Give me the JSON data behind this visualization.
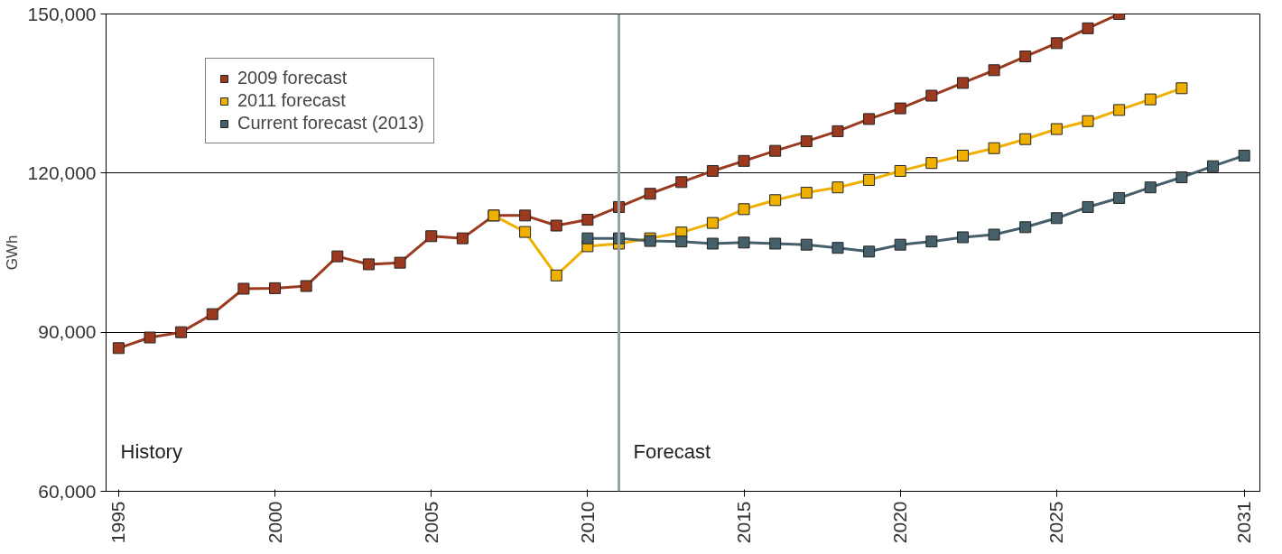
{
  "chart_data": {
    "type": "line",
    "ylabel": "GWh",
    "xlim": [
      1994.6,
      2031.5
    ],
    "xticks": [
      1995,
      2000,
      2005,
      2010,
      2015,
      2020,
      2025,
      2031
    ],
    "ylim": [
      60000,
      150000
    ],
    "yticks": [
      {
        "value": 60000,
        "label": "60,000"
      },
      {
        "value": 90000,
        "label": "90,000"
      },
      {
        "value": 120000,
        "label": "120,000"
      },
      {
        "value": 150000,
        "label": "150,000"
      }
    ],
    "grid": "y",
    "legend": "top left",
    "marker": "square",
    "line_style": "solid",
    "series": [
      {
        "name": "2009 forecast",
        "color": "#9b3a1e",
        "x": [
          1995,
          1996,
          1997,
          1998,
          1999,
          2000,
          2001,
          2002,
          2003,
          2004,
          2005,
          2006,
          2007,
          2008,
          2009,
          2010,
          2011,
          2012,
          2013,
          2014,
          2015,
          2016,
          2017,
          2018,
          2019,
          2020,
          2021,
          2022,
          2023,
          2024,
          2025,
          2026,
          2027
        ],
        "values": [
          87000,
          89000,
          90000,
          93400,
          98200,
          98300,
          98700,
          104300,
          102800,
          103100,
          108100,
          107700,
          112000,
          112000,
          110100,
          111200,
          113600,
          116100,
          118300,
          120400,
          122300,
          124200,
          126000,
          127900,
          130200,
          132200,
          134600,
          137000,
          139400,
          142000,
          144500,
          147300,
          150000
        ]
      },
      {
        "name": "2011 forecast",
        "color": "#f0b000",
        "x": [
          2007,
          2008,
          2009,
          2010,
          2011,
          2012,
          2013,
          2014,
          2015,
          2016,
          2017,
          2018,
          2019,
          2020,
          2021,
          2022,
          2023,
          2024,
          2025,
          2026,
          2027,
          2028,
          2029
        ],
        "values": [
          112000,
          108900,
          100700,
          106200,
          106700,
          107700,
          108800,
          110600,
          113200,
          114900,
          116300,
          117300,
          118700,
          120400,
          121900,
          123300,
          124700,
          126400,
          128300,
          129800,
          131900,
          133900,
          136000
        ]
      },
      {
        "name": "Current forecast (2013)",
        "color": "#46606b",
        "x": [
          2010,
          2011,
          2012,
          2013,
          2014,
          2015,
          2016,
          2017,
          2018,
          2019,
          2020,
          2021,
          2022,
          2023,
          2024,
          2025,
          2026,
          2027,
          2028,
          2029,
          2030,
          2031
        ],
        "values": [
          107700,
          107700,
          107200,
          107100,
          106700,
          106900,
          106700,
          106500,
          105900,
          105200,
          106500,
          107100,
          107900,
          108400,
          109800,
          111500,
          113600,
          115300,
          117300,
          119200,
          121300,
          123300
        ]
      }
    ],
    "ref_lines": [
      {
        "axis": "x",
        "value": 2011,
        "color": "#95a5a6"
      }
    ],
    "annotations": [
      "History",
      "Forecast"
    ]
  }
}
